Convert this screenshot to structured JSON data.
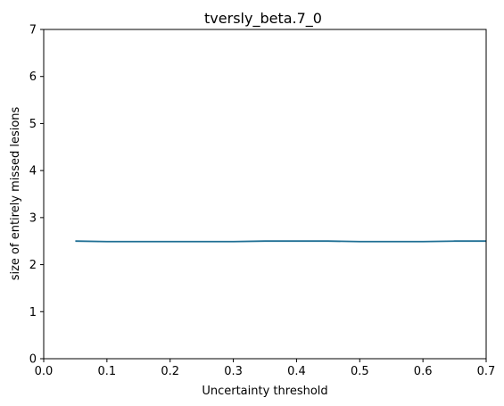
{
  "chart_data": {
    "type": "line",
    "title": "tversly_beta.7_0",
    "xlabel": "Uncertainty threshold",
    "ylabel": "size of entirely missed lesions",
    "xlim": [
      0.0,
      0.7
    ],
    "ylim": [
      0,
      7
    ],
    "xticks": [
      0.0,
      0.1,
      0.2,
      0.3,
      0.4,
      0.5,
      0.6,
      0.7
    ],
    "xtick_labels": [
      "0.0",
      "0.1",
      "0.2",
      "0.3",
      "0.4",
      "0.5",
      "0.6",
      "0.7"
    ],
    "yticks": [
      0,
      1,
      2,
      3,
      4,
      5,
      6,
      7
    ],
    "ytick_labels": [
      "0",
      "1",
      "2",
      "3",
      "4",
      "5",
      "6",
      "7"
    ],
    "grid": false,
    "series": [
      {
        "color": "#1f6f94",
        "x": [
          0.05,
          0.1,
          0.15,
          0.2,
          0.25,
          0.3,
          0.35,
          0.4,
          0.45,
          0.5,
          0.55,
          0.6,
          0.65,
          0.7
        ],
        "y": [
          2.5,
          2.49,
          2.49,
          2.49,
          2.49,
          2.49,
          2.5,
          2.5,
          2.5,
          2.49,
          2.49,
          2.49,
          2.5,
          2.5
        ]
      }
    ]
  }
}
